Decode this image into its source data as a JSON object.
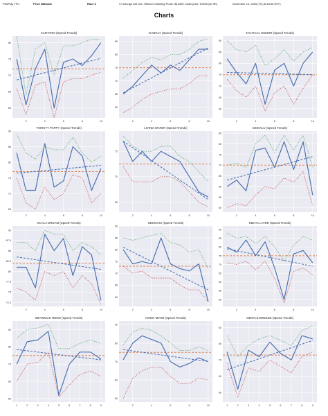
{
  "header": {
    "app": "PickPlay TPo",
    "track": "Penn National",
    "race": "Race 3",
    "info": "4 Furlongs Dirt Clm 7500c/n Claiming Purse: $10400 Claim price: $7500 ($7.5K)",
    "date": "December 10, 2025 (Fri) (6:45:55 EST)"
  },
  "page_title": "Charts",
  "colors": {
    "plot_bg": "#eaeaf2",
    "grid": "#ffffff",
    "main": "#4c72b0",
    "avg": "#dd8452",
    "upper": "#55a868",
    "lower": "#c44e52"
  },
  "chart_data": [
    {
      "type": "line",
      "title": "CANTARO (Speed Trends)",
      "x": [
        1,
        2,
        3,
        4,
        5,
        6,
        7,
        8,
        9,
        10
      ],
      "series": [
        {
          "values": [
            75,
            61,
            72,
            78,
            60,
            74,
            75,
            73,
            76,
            80
          ]
        },
        {
          "values": [
            82,
            64,
            78,
            80,
            70,
            79,
            79,
            80,
            81,
            81
          ]
        },
        {
          "values": [
            66,
            58,
            67,
            68,
            57,
            68,
            69,
            69,
            70,
            71
          ]
        }
      ],
      "avg": 72,
      "trend": [
        68.6,
        75.2
      ],
      "ylim": [
        57,
        82
      ],
      "yticks": [
        60,
        65,
        70,
        75,
        80
      ],
      "xticks": [
        2,
        4,
        6,
        8,
        10
      ]
    },
    {
      "type": "line",
      "title": "GANGLY (Speed Trends)",
      "x": [
        1,
        2,
        3,
        4,
        5,
        6,
        7,
        8,
        9,
        10
      ],
      "series": [
        {
          "values": [
            65,
            68,
            72,
            76,
            73,
            76,
            74,
            78,
            82,
            82
          ]
        },
        {
          "values": [
            71,
            74,
            77,
            79,
            78,
            80,
            80,
            82,
            85,
            86
          ]
        },
        {
          "values": [
            58,
            60,
            63,
            65,
            66,
            67,
            67,
            69,
            72,
            72
          ]
        }
      ],
      "avg": 75,
      "trend": [
        65.5,
        82.5
      ],
      "ylim": [
        56,
        87
      ],
      "yticks": [
        60,
        65,
        70,
        75,
        80,
        85
      ],
      "xticks": [
        2,
        4,
        6,
        8,
        10
      ]
    },
    {
      "type": "line",
      "title": "TACTICAL HUMOR (Speed Trends)",
      "x": [
        1,
        2,
        3,
        4,
        5,
        6,
        7,
        8,
        9,
        10
      ],
      "series": [
        {
          "values": [
            82,
            76,
            71,
            80,
            62,
            77,
            80,
            70,
            80,
            85
          ]
        },
        {
          "values": [
            90,
            86,
            85,
            88,
            79,
            82,
            86,
            81,
            85,
            87
          ]
        },
        {
          "values": [
            73,
            68,
            65,
            70,
            59,
            67,
            70,
            62,
            69,
            75
          ]
        }
      ],
      "avg": 75,
      "trend": [
        76,
        75
      ],
      "ylim": [
        56,
        92
      ],
      "yticks": [
        60,
        65,
        70,
        75,
        80,
        85,
        90
      ],
      "xticks": [
        2,
        4,
        6,
        8,
        10
      ]
    },
    {
      "type": "line",
      "title": "THIRSTY PAPPY (Speed Trends)",
      "x": [
        1,
        2,
        3,
        4,
        5,
        6,
        7,
        8,
        9,
        10
      ],
      "series": [
        {
          "values": [
            83,
            71,
            71,
            86,
            72,
            74,
            85,
            82,
            71,
            78
          ]
        },
        {
          "values": [
            89,
            83,
            81,
            85,
            84,
            84,
            88,
            83,
            80,
            82
          ]
        },
        {
          "values": [
            75,
            67,
            65,
            72,
            68,
            70,
            76,
            75,
            67,
            70
          ]
        }
      ],
      "avg": 77,
      "trend": [
        76.5,
        79
      ],
      "ylim": [
        64,
        90
      ],
      "yticks": [
        65,
        70,
        75,
        80,
        85,
        90
      ],
      "xticks": [
        2,
        4,
        6,
        8,
        10
      ]
    },
    {
      "type": "line",
      "title": "LIVING WATER (Speed Trends)",
      "x": [
        1,
        2,
        3,
        4,
        5,
        6,
        7,
        8,
        9,
        10
      ],
      "series": [
        {
          "values": [
            77,
            73,
            75,
            73,
            75,
            74,
            73,
            70,
            67,
            66
          ]
        },
        {
          "values": [
            78,
            76,
            75,
            75,
            76,
            76,
            74,
            73,
            71,
            69
          ]
        },
        {
          "values": [
            72,
            69,
            69,
            69,
            70,
            70,
            69,
            67,
            65,
            64
          ]
        }
      ],
      "avg": 72.5,
      "trend": [
        77,
        65.5
      ],
      "ylim": [
        63,
        79
      ],
      "yticks": [
        65,
        70,
        75
      ],
      "xticks": [
        2,
        4,
        6,
        8,
        10
      ]
    },
    {
      "type": "line",
      "title": "MOSALU (Speed Trends)",
      "x": [
        1,
        2,
        3,
        4,
        5,
        6,
        7,
        8,
        9,
        10
      ],
      "series": [
        {
          "values": [
            60,
            63,
            58,
            77,
            78,
            69,
            81,
            68,
            81,
            56
          ]
        },
        {
          "values": [
            70,
            71,
            69,
            80,
            84,
            76,
            84,
            77,
            84,
            69
          ]
        },
        {
          "values": [
            50,
            52,
            51,
            56,
            60,
            59,
            64,
            62,
            67,
            51
          ]
        }
      ],
      "avg": 70,
      "trend": [
        63,
        74
      ],
      "ylim": [
        48,
        86
      ],
      "yticks": [
        50,
        55,
        60,
        65,
        70,
        75,
        80,
        85
      ],
      "xticks": [
        2,
        4,
        6,
        8,
        10
      ]
    },
    {
      "type": "line",
      "title": "OCALA DREAM (Speed Trends)",
      "x": [
        1,
        2,
        3,
        4,
        5,
        6,
        7,
        8,
        9,
        10
      ],
      "series": [
        {
          "values": [
            81,
            81,
            76,
            89,
            85,
            88,
            79,
            86,
            84,
            73
          ]
        },
        {
          "values": [
            87,
            87,
            85,
            90,
            89,
            89,
            85,
            87,
            86,
            84
          ]
        },
        {
          "values": [
            76,
            75,
            73,
            80,
            79,
            80,
            76,
            79,
            77,
            72
          ]
        }
      ],
      "avg": 82,
      "trend": [
        83.5,
        80.5
      ],
      "ylim": [
        71.5,
        91
      ],
      "yticks": [
        72.5,
        75,
        77.5,
        80,
        82.5,
        85,
        87.5,
        90
      ],
      "xticks": [
        2,
        4,
        6,
        8,
        10
      ]
    },
    {
      "type": "line",
      "title": "GENGHIS (Speed Trends)",
      "x": [
        1,
        2,
        3,
        4,
        5,
        6,
        7,
        8,
        9,
        10
      ],
      "series": [
        {
          "values": [
            80,
            74,
            75,
            74,
            85,
            74,
            72,
            71,
            74,
            58
          ]
        },
        {
          "values": [
            85,
            84,
            85,
            86,
            87,
            83,
            82,
            79,
            80,
            72
          ]
        },
        {
          "values": [
            73,
            70,
            71,
            68,
            68,
            68,
            65,
            63,
            63,
            58
          ]
        }
      ],
      "avg": 73,
      "trend": [
        81,
        63
      ],
      "ylim": [
        56,
        90
      ],
      "yticks": [
        60,
        65,
        70,
        75,
        80,
        85,
        90
      ],
      "xticks": [
        2,
        4,
        6,
        8,
        10
      ]
    },
    {
      "type": "line",
      "title": "KBCYA LATER (Speed Trends)",
      "x": [
        1,
        2,
        3,
        4,
        5,
        6,
        7,
        8,
        9,
        10
      ],
      "series": [
        {
          "values": [
            80,
            77,
            84,
            75,
            83,
            68,
            50,
            76,
            78,
            71
          ]
        },
        {
          "values": [
            88,
            85,
            86,
            82,
            86,
            80,
            72,
            81,
            86,
            84
          ]
        },
        {
          "values": [
            71,
            70,
            72,
            67,
            72,
            62,
            48,
            66,
            68,
            64
          ]
        }
      ],
      "avg": 75,
      "trend": [
        79,
        69
      ],
      "ylim": [
        46,
        92
      ],
      "yticks": [
        50,
        55,
        60,
        65,
        70,
        75,
        80,
        85,
        90
      ],
      "xticks": [
        2,
        4,
        6,
        8,
        10
      ]
    },
    {
      "type": "line",
      "title": "INFAMOUS NONO (Speed Trends)",
      "x": [
        1,
        2,
        3,
        4,
        5,
        6,
        7,
        8,
        9
      ],
      "series": [
        {
          "values": [
            70,
            83,
            84,
            89,
            52,
            70,
            77,
            77,
            73
          ]
        },
        {
          "values": [
            85,
            90,
            91,
            93,
            79,
            79,
            82,
            84,
            82
          ]
        },
        {
          "values": [
            60,
            70,
            71,
            77,
            51,
            58,
            64,
            66,
            63
          ]
        }
      ],
      "avg": 75,
      "trend": [
        78.5,
        72.5
      ],
      "ylim": [
        48,
        95
      ],
      "yticks": [
        50,
        60,
        70,
        80,
        90
      ],
      "xticks": [
        1,
        2,
        3,
        4,
        5,
        6,
        7,
        8,
        9
      ]
    },
    {
      "type": "line",
      "title": "INTER MIAMI (Speed Trends)",
      "x": [
        1,
        2,
        3,
        4,
        5,
        6,
        7,
        8,
        9,
        10
      ],
      "series": [
        {
          "values": [
            71,
            80,
            84,
            82,
            80,
            70,
            67,
            69,
            72,
            70
          ]
        },
        {
          "values": [
            79,
            86,
            88,
            87,
            84,
            80,
            76,
            76,
            78,
            76
          ]
        },
        {
          "values": [
            50,
            61,
            65,
            67,
            67,
            62,
            58,
            58,
            61,
            60
          ]
        }
      ],
      "avg": 75,
      "trend": [
        76.5,
        70
      ],
      "ylim": [
        48,
        92
      ],
      "yticks": [
        50,
        60,
        70,
        80,
        90
      ],
      "xticks": [
        2,
        4,
        6,
        8,
        10
      ]
    },
    {
      "type": "line",
      "title": "GENTLE BREEZE (Speed Trends)",
      "x": [
        1,
        2,
        3,
        4,
        5,
        6,
        7,
        8,
        9
      ],
      "series": [
        {
          "values": [
            75,
            52,
            76,
            72,
            81,
            74,
            70,
            85,
            83
          ]
        },
        {
          "values": [
            85,
            72,
            79,
            83,
            85,
            82,
            79,
            88,
            91
          ]
        },
        {
          "values": [
            68,
            47,
            65,
            63,
            70,
            66,
            62,
            72,
            75
          ]
        }
      ],
      "avg": 73,
      "trend": [
        64,
        82
      ],
      "ylim": [
        44,
        94
      ],
      "yticks": [
        50,
        60,
        70,
        80,
        90
      ],
      "xticks": [
        1,
        2,
        3,
        4,
        5,
        6,
        7,
        8,
        9
      ]
    }
  ]
}
